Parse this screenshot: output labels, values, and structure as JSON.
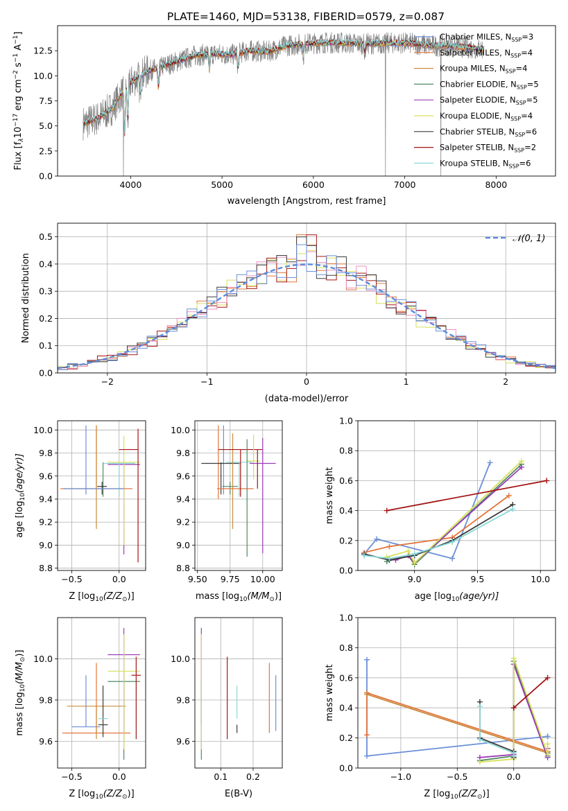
{
  "title": "PLATE=1460, MJD=53138, FIBERID=0579, z=0.087",
  "colors": {
    "data": "#808080",
    "models": [
      "#6a8fd8",
      "#e4743a",
      "#c98a3a",
      "#4f8a63",
      "#9a3bb5",
      "#d6e05a",
      "#3a3a3a",
      "#a31414",
      "#8ad8d8"
    ],
    "hist": [
      "#e4743a",
      "#d6e05a",
      "#a31414",
      "#ee90c0",
      "#3a3a3a",
      "#6a8fd8"
    ],
    "gaussian": "#5b8bd9"
  },
  "chart_data": [
    {
      "id": "spectrum",
      "type": "line",
      "xlabel": "wavelength [Angstrom, rest frame]",
      "ylabel": "Flux [f",
      "ylabel_sub": "λ",
      "ylabel_rest": "10",
      "ylabel_exp": "−17",
      "ylabel_units": " erg cm",
      "ylabel_exp2": "−2",
      "ylabel_units2": " s",
      "ylabel_exp3": "−1",
      "ylabel_units3": " A",
      "ylabel_exp4": "−1",
      "ylabel_close": "]",
      "xlim": [
        3200,
        8650
      ],
      "ylim": [
        0,
        15
      ],
      "xticks": [
        4000,
        5000,
        6000,
        7000,
        8000
      ],
      "yticks": [
        "0.0",
        "2.5",
        "5.0",
        "7.5",
        "10.0",
        "12.5"
      ],
      "ytick_values": [
        0,
        2.5,
        5,
        7.5,
        10,
        12.5
      ],
      "legend_position": "right",
      "legend": [
        {
          "name": "Chabrier MILES, N",
          "sub": "SSP",
          "tail": "=3"
        },
        {
          "name": "Salpeter MILES, N",
          "sub": "SSP",
          "tail": "=4"
        },
        {
          "name": "Kroupa MILES, N",
          "sub": "SSP",
          "tail": "=4"
        },
        {
          "name": "Chabrier ELODIE, N",
          "sub": "SSP",
          "tail": "=5"
        },
        {
          "name": "Salpeter ELODIE, N",
          "sub": "SSP",
          "tail": "=5"
        },
        {
          "name": "Kroupa ELODIE, N",
          "sub": "SSP",
          "tail": "=4"
        },
        {
          "name": "Chabrier STELIB, N",
          "sub": "SSP",
          "tail": "=6"
        },
        {
          "name": "Salpeter STELIB, N",
          "sub": "SSP",
          "tail": "=2"
        },
        {
          "name": "Kroupa STELIB, N",
          "sub": "SSP",
          "tail": "=6"
        }
      ],
      "continuum": {
        "x": [
          3500,
          3650,
          3800,
          3900,
          4000,
          4100,
          4200,
          4300,
          4500,
          4700,
          4900,
          5100,
          5300,
          5500,
          5700,
          5900,
          6100,
          6300,
          6500,
          6700,
          6900,
          7100,
          7300,
          7500,
          7700,
          7900
        ],
        "y": [
          5.3,
          5.8,
          6.8,
          8.2,
          9.3,
          10.0,
          10.5,
          10.8,
          11.4,
          12.0,
          12.2,
          12.1,
          12.5,
          12.4,
          13.0,
          13.2,
          13.3,
          13.3,
          13.2,
          13.2,
          13.3,
          13.2,
          13.0,
          13.0,
          12.8,
          12.6
        ]
      },
      "absorption_lines": [
        {
          "x": 3934,
          "depth": 4.5
        },
        {
          "x": 3969,
          "depth": 3.5
        },
        {
          "x": 4102,
          "depth": 1.8
        },
        {
          "x": 4304,
          "depth": 2.0
        },
        {
          "x": 4861,
          "depth": 1.5
        },
        {
          "x": 5175,
          "depth": 1.5
        },
        {
          "x": 5893,
          "depth": 1.2
        },
        {
          "x": 6563,
          "depth": 0.8
        }
      ],
      "spikes": [
        {
          "x": 3920,
          "low": 0.0
        },
        {
          "x": 6790,
          "low": 0.0
        },
        {
          "x": 7395,
          "low": 0.0
        }
      ],
      "data_range": [
        3480,
        7870
      ]
    },
    {
      "id": "residuals",
      "type": "histogram",
      "xlabel": "(data-model)/error",
      "ylabel": "Normed distribution",
      "xlim": [
        -2.5,
        2.5
      ],
      "ylim": [
        0,
        0.55
      ],
      "xticks": [
        "−2",
        "−1",
        "0",
        "1",
        "2"
      ],
      "xtick_values": [
        -2,
        -1,
        0,
        1,
        2
      ],
      "yticks": [
        "0.0",
        "0.1",
        "0.2",
        "0.3",
        "0.4",
        "0.5"
      ],
      "ytick_values": [
        0,
        0.1,
        0.2,
        0.3,
        0.4,
        0.5
      ],
      "legend_position": "top-right",
      "gaussian_label": "𝒩(0, 1)",
      "bin_width": 0.1,
      "grid": true
    },
    {
      "id": "age-vs-Z",
      "type": "errorbar",
      "xlabel": "Z [log",
      "xlabel_sub": "10",
      "xlabel_rest": "(Z/Z",
      "xlabel_sub2": "⊙",
      "xlabel_close": ")]",
      "ylabel": "age  [log",
      "ylabel_sub": "10",
      "ylabel_rest": "(age/yr)]",
      "xlim": [
        -0.65,
        0.28
      ],
      "ylim": [
        8.78,
        10.08
      ],
      "xticks": [
        "−0.5",
        "0.0"
      ],
      "xtick_values": [
        -0.5,
        0.0
      ],
      "yticks": [
        "8.8",
        "9.0",
        "9.2",
        "9.4",
        "9.6",
        "9.8",
        "10.0"
      ],
      "ytick_values": [
        8.8,
        9.0,
        9.2,
        9.4,
        9.6,
        9.8,
        10.0
      ],
      "points": [
        {
          "c": 0,
          "x": -0.35,
          "xerr": 0.0,
          "y": 9.73,
          "ylo": 9.44,
          "yhi": 10.04
        },
        {
          "c": 1,
          "x": -0.24,
          "xerr": 0.38,
          "y": 9.49,
          "ylo": 9.49,
          "yhi": 10.04
        },
        {
          "c": 3,
          "x": -0.17,
          "xerr": 0.0,
          "y": 9.55,
          "ylo": 9.42,
          "yhi": 9.72
        },
        {
          "c": 6,
          "x": -0.18,
          "xerr": 0.05,
          "y": 9.51,
          "ylo": 9.44,
          "yhi": 9.55
        },
        {
          "c": 4,
          "x": 0.05,
          "xerr": 0.17,
          "y": 9.7,
          "ylo": 8.92,
          "yhi": 9.72
        },
        {
          "c": 5,
          "x": 0.05,
          "xerr": 0.17,
          "y": 9.72,
          "ylo": 9.0,
          "yhi": 9.95
        },
        {
          "c": 8,
          "x": 0.0,
          "xerr": 0.17,
          "y": 9.71,
          "ylo": 9.42,
          "yhi": 9.72
        },
        {
          "c": 7,
          "x": 0.2,
          "xerr": 0.0,
          "y": 9.83,
          "ylo": 8.85,
          "yhi": 10.01
        },
        {
          "c": 7,
          "x": 0.1,
          "xerr": 0.1,
          "y": 9.83,
          "ylo": 9.83,
          "yhi": 9.83
        },
        {
          "c": 2,
          "x": -0.24,
          "xerr": 0.0,
          "y": 9.49,
          "ylo": 9.14,
          "yhi": 10.04
        },
        {
          "c": 0,
          "x": -0.27,
          "xerr": 0.32,
          "y": 9.49,
          "ylo": 9.49,
          "yhi": 9.49
        }
      ]
    },
    {
      "id": "age-vs-mass",
      "type": "errorbar",
      "xlabel": "mass [log",
      "xlabel_sub": "10",
      "xlabel_rest": "(M/M",
      "xlabel_sub2": "⊙",
      "xlabel_close": ")]",
      "xlim": [
        9.48,
        10.15
      ],
      "ylim": [
        8.78,
        10.08
      ],
      "xticks": [
        "9.50",
        "9.75",
        "10.00"
      ],
      "xtick_values": [
        9.5,
        9.75,
        10.0
      ],
      "yticks": [
        "8.8",
        "9.0",
        "9.2",
        "9.4",
        "9.6",
        "9.8",
        "10.0"
      ],
      "ytick_values": [
        8.8,
        9.0,
        9.2,
        9.4,
        9.6,
        9.8,
        10.0
      ],
      "points": [
        {
          "c": 1,
          "x": 9.66,
          "xerr": 0.0,
          "y": 9.49,
          "ylo": 9.4,
          "yhi": 10.04
        },
        {
          "c": 0,
          "x": 9.7,
          "xerr": 0.0,
          "y": 9.73,
          "ylo": 9.44,
          "yhi": 10.04
        },
        {
          "c": 6,
          "x": 9.68,
          "xerr": 0.15,
          "y": 9.71,
          "ylo": 9.44,
          "yhi": 9.72
        },
        {
          "c": 3,
          "x": 9.75,
          "xerr": 0.06,
          "y": 9.51,
          "ylo": 9.44,
          "yhi": 9.55
        },
        {
          "c": 8,
          "x": 9.82,
          "xerr": 0.1,
          "y": 9.72,
          "ylo": 9.42,
          "yhi": 9.72
        },
        {
          "c": 2,
          "x": 9.77,
          "xerr": 0.0,
          "y": 9.49,
          "ylo": 9.14,
          "yhi": 9.97
        },
        {
          "c": 1,
          "x": 9.79,
          "xerr": 0.14,
          "y": 9.49,
          "ylo": 9.49,
          "yhi": 9.49
        },
        {
          "c": 7,
          "x": 9.83,
          "xerr": 0.17,
          "y": 9.83,
          "ylo": 9.42,
          "yhi": 9.83
        },
        {
          "c": 5,
          "x": 9.93,
          "xerr": 0.05,
          "y": 9.73,
          "ylo": 9.57,
          "yhi": 9.96
        },
        {
          "c": 3,
          "x": 9.88,
          "xerr": 0.0,
          "y": 9.6,
          "ylo": 8.9,
          "yhi": 9.92
        },
        {
          "c": 4,
          "x": 10.0,
          "xerr": 0.1,
          "y": 9.71,
          "ylo": 8.93,
          "yhi": 9.93
        },
        {
          "c": 7,
          "x": 9.96,
          "xerr": 0.0,
          "y": 9.8,
          "ylo": 9.49,
          "yhi": 9.83
        }
      ]
    },
    {
      "id": "weight-vs-age",
      "type": "line",
      "xlabel": "age  [log",
      "xlabel_sub": "10",
      "xlabel_rest": "(age/yr)]",
      "ylabel": "mass weight",
      "xlim": [
        8.55,
        10.12
      ],
      "ylim": [
        0,
        1
      ],
      "xticks": [
        "9.0",
        "9.5",
        "10.0"
      ],
      "xtick_values": [
        9.0,
        9.5,
        10.0
      ],
      "yticks": [
        "0.0",
        "0.2",
        "0.4",
        "0.6",
        "0.8",
        "1.0"
      ],
      "ytick_values": [
        0,
        0.2,
        0.4,
        0.6,
        0.8,
        1.0
      ],
      "grid": true,
      "series": [
        {
          "c": 0,
          "x": [
            8.6,
            8.7,
            9.3,
            9.6
          ],
          "y": [
            0.11,
            0.21,
            0.08,
            0.72
          ]
        },
        {
          "c": 1,
          "x": [
            8.6,
            8.8,
            9.3,
            9.75
          ],
          "y": [
            0.12,
            0.16,
            0.22,
            0.5
          ]
        },
        {
          "c": 3,
          "x": [
            8.78,
            8.95,
            9.0,
            9.85
          ],
          "y": [
            0.06,
            0.1,
            0.04,
            0.71
          ]
        },
        {
          "c": 4,
          "x": [
            8.85,
            8.95,
            9.0,
            9.85
          ],
          "y": [
            0.07,
            0.1,
            0.05,
            0.69
          ]
        },
        {
          "c": 5,
          "x": [
            8.78,
            8.95,
            9.0,
            9.85
          ],
          "y": [
            0.09,
            0.13,
            0.05,
            0.73
          ]
        },
        {
          "c": 6,
          "x": [
            8.6,
            8.8,
            9.0,
            9.3,
            9.78
          ],
          "y": [
            0.11,
            0.07,
            0.1,
            0.2,
            0.44
          ]
        },
        {
          "c": 7,
          "x": [
            8.78,
            10.05
          ],
          "y": [
            0.4,
            0.6
          ]
        },
        {
          "c": 8,
          "x": [
            8.6,
            8.8,
            9.0,
            9.3,
            9.78
          ],
          "y": [
            0.1,
            0.08,
            0.11,
            0.19,
            0.41
          ]
        }
      ]
    },
    {
      "id": "mass-vs-Z",
      "type": "errorbar",
      "xlabel": "Z [log",
      "xlabel_sub": "10",
      "xlabel_rest": "(Z/Z",
      "xlabel_sub2": "⊙",
      "xlabel_close": ")]",
      "ylabel": "mass [log",
      "ylabel_sub": "10",
      "ylabel_rest": "(M/M",
      "ylabel_sub2": "⊙",
      "ylabel_close": ")]",
      "xlim": [
        -0.65,
        0.28
      ],
      "ylim": [
        9.47,
        10.2
      ],
      "xticks": [
        "−0.5",
        "0.0"
      ],
      "xtick_values": [
        -0.5,
        0.0
      ],
      "yticks": [
        "9.6",
        "9.8",
        "10.0"
      ],
      "ytick_values": [
        9.6,
        9.8,
        10.0
      ],
      "points": [
        {
          "c": 0,
          "x": -0.35,
          "xerr": 0.15,
          "y": 9.67,
          "ylo": 9.67,
          "yhi": 9.92
        },
        {
          "c": 1,
          "x": -0.24,
          "xerr": 0.36,
          "y": 9.64,
          "ylo": 9.64,
          "yhi": 9.98
        },
        {
          "c": 2,
          "x": -0.24,
          "xerr": 0.31,
          "y": 9.77,
          "ylo": 9.61,
          "yhi": 9.77
        },
        {
          "c": 6,
          "x": -0.17,
          "xerr": 0.05,
          "y": 9.68,
          "ylo": 9.62,
          "yhi": 9.87
        },
        {
          "c": 8,
          "x": -0.17,
          "xerr": 0.05,
          "y": 9.71,
          "ylo": 9.71,
          "yhi": 9.71
        },
        {
          "c": 3,
          "x": 0.05,
          "xerr": 0.17,
          "y": 9.89,
          "ylo": 9.51,
          "yhi": 9.89
        },
        {
          "c": 4,
          "x": 0.05,
          "xerr": 0.17,
          "y": 10.02,
          "ylo": 9.64,
          "yhi": 10.15
        },
        {
          "c": 5,
          "x": 0.05,
          "xerr": 0.17,
          "y": 9.94,
          "ylo": 9.56,
          "yhi": 10.12
        },
        {
          "c": 7,
          "x": 0.18,
          "xerr": 0.05,
          "y": 9.92,
          "ylo": 9.61,
          "yhi": 10.01
        }
      ]
    },
    {
      "id": "mass-vs-ebv",
      "type": "errorbar",
      "xlabel": "E(B-V)",
      "xlim": [
        0.02,
        0.29
      ],
      "ylim": [
        9.47,
        10.2
      ],
      "xticks": [
        "0.1",
        "0.2"
      ],
      "xtick_values": [
        0.1,
        0.2
      ],
      "yticks": [
        "9.6",
        "9.8",
        "10.0"
      ],
      "ytick_values": [
        9.6,
        9.8,
        10.0
      ],
      "points": [
        {
          "c": 3,
          "x": 0.04,
          "ylo": 9.51,
          "yhi": 9.89
        },
        {
          "c": 4,
          "x": 0.04,
          "ylo": 9.68,
          "yhi": 10.15
        },
        {
          "c": 5,
          "x": 0.04,
          "ylo": 9.56,
          "yhi": 10.12
        },
        {
          "c": 7,
          "x": 0.12,
          "ylo": 9.61,
          "yhi": 10.01
        },
        {
          "c": 8,
          "x": 0.15,
          "ylo": 9.71,
          "yhi": 9.87
        },
        {
          "c": 6,
          "x": 0.15,
          "ylo": 9.64,
          "yhi": 9.68
        },
        {
          "c": 1,
          "x": 0.25,
          "ylo": 9.64,
          "yhi": 9.98
        },
        {
          "c": 0,
          "x": 0.27,
          "ylo": 9.65,
          "yhi": 9.92
        }
      ]
    },
    {
      "id": "weight-vs-Z",
      "type": "line",
      "xlabel": "Z [log",
      "xlabel_sub": "10",
      "xlabel_rest": "(Z/Z",
      "xlabel_sub2": "⊙",
      "xlabel_close": ")]",
      "ylabel": "mass weight",
      "xlim": [
        -1.38,
        0.37
      ],
      "ylim": [
        0,
        1
      ],
      "xticks": [
        "−1.0",
        "−0.5",
        "0.0"
      ],
      "xtick_values": [
        -1.0,
        -0.5,
        0.0
      ],
      "yticks": [
        "0.0",
        "0.2",
        "0.4",
        "0.6",
        "0.8",
        "1.0"
      ],
      "ytick_values": [
        0,
        0.2,
        0.4,
        0.6,
        0.8,
        1.0
      ],
      "grid": true,
      "series": [
        {
          "c": 0,
          "x": [
            -1.3,
            -1.3,
            0.3,
            0.3
          ],
          "y": [
            0.72,
            0.08,
            0.21,
            0.21
          ]
        },
        {
          "c": 1,
          "x": [
            -1.3,
            -1.3,
            0.3
          ],
          "y": [
            0.22,
            0.5,
            0.11
          ]
        },
        {
          "c": 2,
          "x": [
            -1.3,
            0.3
          ],
          "y": [
            0.49,
            0.1
          ]
        },
        {
          "c": 3,
          "x": [
            -0.3,
            0.0,
            0.0,
            0.3,
            0.3
          ],
          "y": [
            0.05,
            0.08,
            0.71,
            0.08,
            0.1
          ]
        },
        {
          "c": 4,
          "x": [
            -0.3,
            0.0,
            0.0,
            0.3,
            0.3
          ],
          "y": [
            0.07,
            0.09,
            0.69,
            0.07,
            0.13
          ]
        },
        {
          "c": 5,
          "x": [
            -0.3,
            0.0,
            0.0,
            0.3,
            0.3
          ],
          "y": [
            0.04,
            0.06,
            0.73,
            0.09,
            0.16
          ]
        },
        {
          "c": 6,
          "x": [
            -0.3,
            -0.3,
            0.0,
            0.0
          ],
          "y": [
            0.44,
            0.2,
            0.11,
            0.07
          ]
        },
        {
          "c": 7,
          "x": [
            0.0,
            0.3
          ],
          "y": [
            0.4,
            0.6
          ]
        },
        {
          "c": 8,
          "x": [
            -0.3,
            -0.3,
            0.0,
            0.0
          ],
          "y": [
            0.41,
            0.19,
            0.1,
            0.08
          ]
        }
      ]
    }
  ]
}
